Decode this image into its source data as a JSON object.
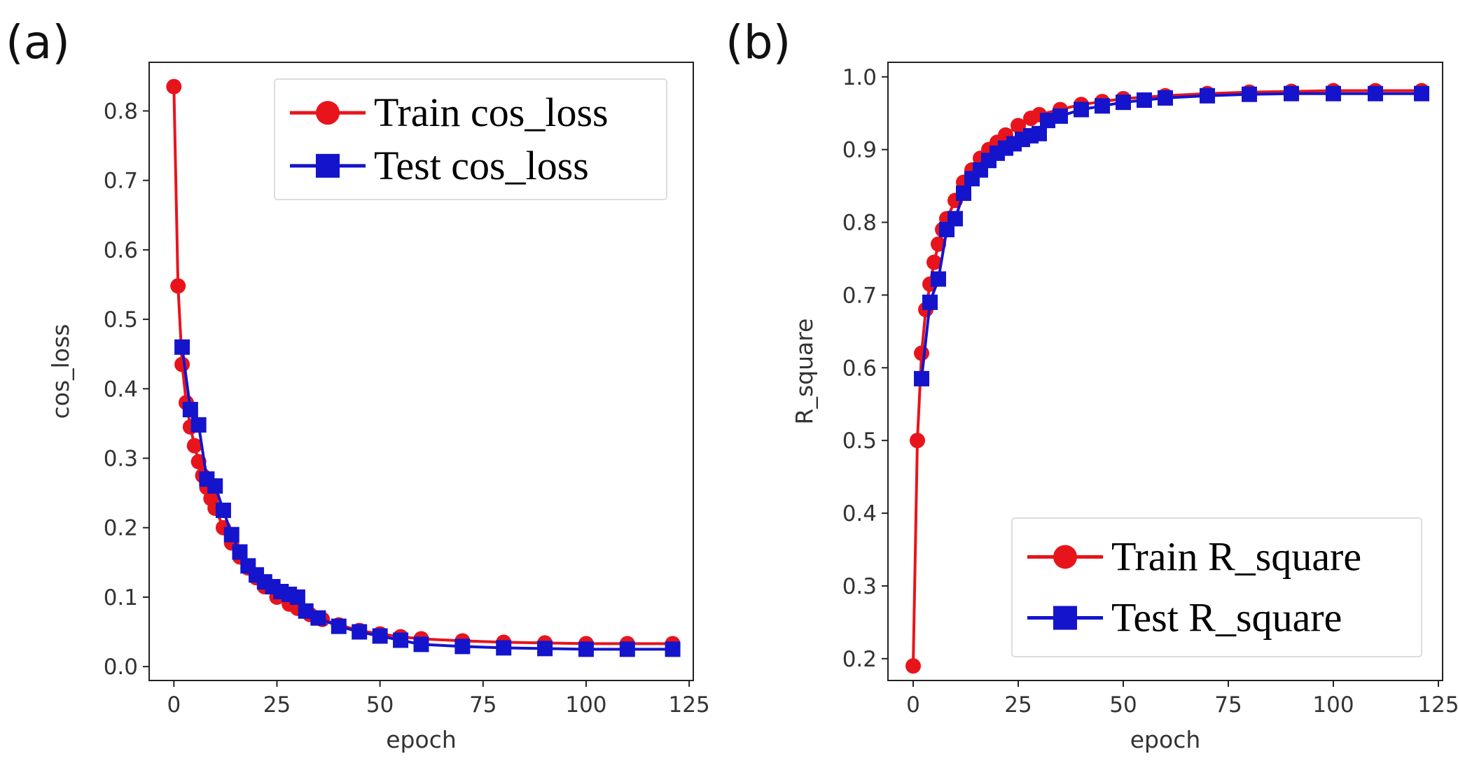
{
  "chart_data": [
    {
      "panel": "(a)",
      "type": "line",
      "xlabel": "epoch",
      "ylabel": "cos_loss",
      "xlim": [
        -6,
        126
      ],
      "ylim": [
        -0.02,
        0.87
      ],
      "xticks": [
        0,
        25,
        50,
        75,
        100,
        125
      ],
      "yticks": [
        0.0,
        0.1,
        0.2,
        0.3,
        0.4,
        0.5,
        0.6,
        0.7,
        0.8
      ],
      "legend_position": "top-right",
      "series": [
        {
          "name": "Train cos_loss",
          "color": "#e8141c",
          "marker": "circle",
          "x": [
            0,
            1,
            2,
            3,
            4,
            5,
            6,
            7,
            8,
            9,
            10,
            12,
            14,
            16,
            18,
            20,
            22,
            25,
            28,
            30,
            33,
            36,
            40,
            45,
            50,
            55,
            60,
            70,
            80,
            90,
            100,
            110,
            121
          ],
          "values": [
            0.835,
            0.548,
            0.435,
            0.38,
            0.345,
            0.318,
            0.295,
            0.275,
            0.258,
            0.242,
            0.228,
            0.2,
            0.178,
            0.158,
            0.142,
            0.128,
            0.115,
            0.1,
            0.09,
            0.084,
            0.075,
            0.068,
            0.06,
            0.052,
            0.047,
            0.043,
            0.04,
            0.037,
            0.035,
            0.034,
            0.033,
            0.033,
            0.033
          ]
        },
        {
          "name": "Test cos_loss",
          "color": "#1414cc",
          "marker": "square",
          "x": [
            2,
            4,
            6,
            8,
            10,
            12,
            14,
            16,
            18,
            20,
            22,
            24,
            26,
            28,
            30,
            32,
            35,
            40,
            45,
            50,
            55,
            60,
            70,
            80,
            90,
            100,
            110,
            121
          ],
          "values": [
            0.46,
            0.37,
            0.348,
            0.27,
            0.26,
            0.225,
            0.19,
            0.165,
            0.145,
            0.132,
            0.122,
            0.115,
            0.108,
            0.104,
            0.1,
            0.08,
            0.07,
            0.058,
            0.05,
            0.044,
            0.038,
            0.032,
            0.029,
            0.027,
            0.026,
            0.025,
            0.025,
            0.025
          ]
        }
      ]
    },
    {
      "panel": "(b)",
      "type": "line",
      "xlabel": "epoch",
      "ylabel": "R_square",
      "xlim": [
        -6,
        126
      ],
      "ylim": [
        0.17,
        1.02
      ],
      "xticks": [
        0,
        25,
        50,
        75,
        100,
        125
      ],
      "yticks": [
        0.2,
        0.3,
        0.4,
        0.5,
        0.6,
        0.7,
        0.8,
        0.9,
        1.0
      ],
      "legend_position": "bottom-right",
      "series": [
        {
          "name": "Train R_square",
          "color": "#e8141c",
          "marker": "circle",
          "x": [
            0,
            1,
            2,
            3,
            4,
            5,
            6,
            7,
            8,
            10,
            12,
            14,
            16,
            18,
            20,
            22,
            25,
            28,
            30,
            35,
            40,
            45,
            50,
            60,
            70,
            80,
            90,
            100,
            110,
            121
          ],
          "values": [
            0.19,
            0.5,
            0.62,
            0.68,
            0.715,
            0.745,
            0.77,
            0.79,
            0.805,
            0.83,
            0.855,
            0.872,
            0.888,
            0.9,
            0.91,
            0.92,
            0.933,
            0.943,
            0.948,
            0.955,
            0.962,
            0.966,
            0.97,
            0.974,
            0.977,
            0.979,
            0.98,
            0.981,
            0.981,
            0.981
          ]
        },
        {
          "name": "Test R_square",
          "color": "#1414cc",
          "marker": "square",
          "x": [
            2,
            4,
            6,
            8,
            10,
            12,
            14,
            16,
            18,
            20,
            22,
            24,
            26,
            28,
            30,
            32,
            35,
            40,
            45,
            50,
            55,
            60,
            70,
            80,
            90,
            100,
            110,
            121
          ],
          "values": [
            0.585,
            0.69,
            0.722,
            0.79,
            0.805,
            0.84,
            0.86,
            0.872,
            0.885,
            0.895,
            0.902,
            0.908,
            0.914,
            0.919,
            0.922,
            0.94,
            0.946,
            0.955,
            0.96,
            0.965,
            0.968,
            0.971,
            0.974,
            0.976,
            0.977,
            0.977,
            0.977,
            0.977
          ]
        }
      ]
    }
  ]
}
